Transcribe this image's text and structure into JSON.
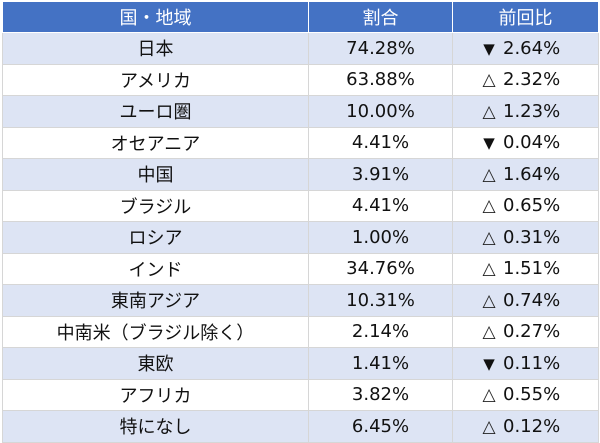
{
  "table": {
    "headers": {
      "region": "国・地域",
      "share": "割合",
      "change": "前回比"
    },
    "icons": {
      "down": "▼",
      "up": "△"
    },
    "rows": [
      {
        "region": "日本",
        "share": "74.28%",
        "trend": "down",
        "trend_icon": "▼",
        "change": "2.64%"
      },
      {
        "region": "アメリカ",
        "share": "63.88%",
        "trend": "up",
        "trend_icon": "△",
        "change": "2.32%"
      },
      {
        "region": "ユーロ圏",
        "share": "10.00%",
        "trend": "up",
        "trend_icon": "△",
        "change": "1.23%"
      },
      {
        "region": "オセアニア",
        "share": "4.41%",
        "trend": "down",
        "trend_icon": "▼",
        "change": "0.04%"
      },
      {
        "region": "中国",
        "share": "3.91%",
        "trend": "up",
        "trend_icon": "△",
        "change": "1.64%"
      },
      {
        "region": "ブラジル",
        "share": "4.41%",
        "trend": "up",
        "trend_icon": "△",
        "change": "0.65%"
      },
      {
        "region": "ロシア",
        "share": "1.00%",
        "trend": "up",
        "trend_icon": "△",
        "change": "0.31%"
      },
      {
        "region": "インド",
        "share": "34.76%",
        "trend": "up",
        "trend_icon": "△",
        "change": "1.51%"
      },
      {
        "region": "東南アジア",
        "share": "10.31%",
        "trend": "up",
        "trend_icon": "△",
        "change": "0.74%"
      },
      {
        "region": "中南米（ブラジル除く）",
        "share": "2.14%",
        "trend": "up",
        "trend_icon": "△",
        "change": "0.27%"
      },
      {
        "region": "東欧",
        "share": "1.41%",
        "trend": "down",
        "trend_icon": "▼",
        "change": "0.11%"
      },
      {
        "region": "アフリカ",
        "share": "3.82%",
        "trend": "up",
        "trend_icon": "△",
        "change": "0.55%"
      },
      {
        "region": "特になし",
        "share": "6.45%",
        "trend": "up",
        "trend_icon": "△",
        "change": "0.12%"
      }
    ]
  },
  "colors": {
    "header_bg": "#4472c4",
    "header_text": "#ffffff",
    "stripe_bg": "#dde4f4",
    "row_bg": "#ffffff"
  }
}
